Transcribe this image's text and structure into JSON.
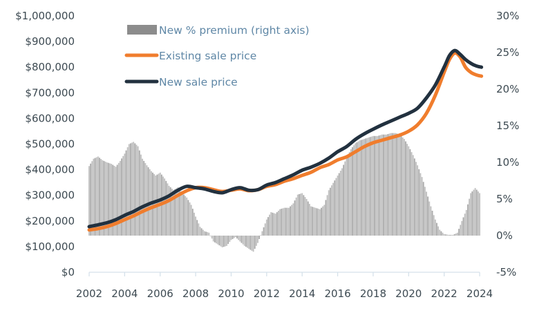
{
  "chart_data": {
    "type": "bar+line",
    "title": "",
    "xlabel": "",
    "ylabel_left": "",
    "ylabel_right": "",
    "x_range": [
      2002,
      2024.1
    ],
    "x_ticks": [
      "2002",
      "2004",
      "2006",
      "2008",
      "2010",
      "2012",
      "2014",
      "2016",
      "2018",
      "2020",
      "2022",
      "2024"
    ],
    "y_left": {
      "range": [
        0,
        1000000
      ],
      "ticks": [
        "$0",
        "$100,000",
        "$200,000",
        "$300,000",
        "$400,000",
        "$500,000",
        "$600,000",
        "$700,000",
        "$800,000",
        "$900,000",
        "$1,000,000"
      ]
    },
    "y_right": {
      "range": [
        -5,
        30
      ],
      "ticks": [
        "-5%",
        "0%",
        "5%",
        "10%",
        "15%",
        "20%",
        "25%",
        "30%"
      ]
    },
    "grid": false,
    "legend": {
      "placement": "top-left",
      "items": [
        {
          "label": "New % premium (right axis)",
          "kind": "bar",
          "color": "#8c8c8c"
        },
        {
          "label": "Existing sale price",
          "kind": "line",
          "color": "#f07d2d"
        },
        {
          "label": "New sale price",
          "kind": "line",
          "color": "#22313f"
        }
      ]
    },
    "series": [
      {
        "name": "New % premium (right axis)",
        "type": "bar",
        "axis": "right",
        "color": "#b4b4b4",
        "x": [
          2002.0,
          2002.25,
          2002.5,
          2002.75,
          2003.0,
          2003.25,
          2003.5,
          2003.75,
          2004.0,
          2004.25,
          2004.5,
          2004.75,
          2005.0,
          2005.25,
          2005.5,
          2005.75,
          2006.0,
          2006.25,
          2006.5,
          2006.75,
          2007.0,
          2007.25,
          2007.5,
          2007.75,
          2008.0,
          2008.25,
          2008.5,
          2008.75,
          2009.0,
          2009.25,
          2009.5,
          2009.75,
          2010.0,
          2010.25,
          2010.5,
          2010.75,
          2011.0,
          2011.25,
          2011.5,
          2011.75,
          2012.0,
          2012.25,
          2012.5,
          2012.75,
          2013.0,
          2013.25,
          2013.5,
          2013.75,
          2014.0,
          2014.25,
          2014.5,
          2014.75,
          2015.0,
          2015.25,
          2015.5,
          2015.75,
          2016.0,
          2016.25,
          2016.5,
          2016.75,
          2017.0,
          2017.25,
          2017.5,
          2017.75,
          2018.0,
          2018.25,
          2018.5,
          2018.75,
          2019.0,
          2019.25,
          2019.5,
          2019.75,
          2020.0,
          2020.25,
          2020.5,
          2020.75,
          2021.0,
          2021.25,
          2021.5,
          2021.75,
          2022.0,
          2022.25,
          2022.5,
          2022.75,
          2023.0,
          2023.25,
          2023.5,
          2023.75,
          2024.0
        ],
        "values": [
          9.5,
          10.5,
          10.8,
          10.3,
          10.0,
          9.8,
          9.4,
          10.2,
          11.2,
          12.5,
          12.8,
          12.2,
          10.5,
          9.6,
          8.8,
          8.2,
          8.6,
          7.8,
          6.8,
          6.2,
          6.6,
          5.8,
          5.2,
          4.2,
          2.6,
          1.2,
          0.6,
          0.4,
          -0.8,
          -1.2,
          -1.6,
          -1.4,
          -0.6,
          -0.2,
          -0.8,
          -1.4,
          -1.8,
          -2.2,
          -1.0,
          0.6,
          2.2,
          3.2,
          3.0,
          3.6,
          3.8,
          3.8,
          4.4,
          5.6,
          5.8,
          5.0,
          4.0,
          3.8,
          3.6,
          4.2,
          6.2,
          7.2,
          8.2,
          9.2,
          10.6,
          11.8,
          12.6,
          13.0,
          13.2,
          13.4,
          13.6,
          13.6,
          13.8,
          13.8,
          14.0,
          14.0,
          13.8,
          13.2,
          12.2,
          11.0,
          9.6,
          8.0,
          6.0,
          4.0,
          2.2,
          0.8,
          0.2,
          0.1,
          0.1,
          0.4,
          2.0,
          3.5,
          5.8,
          6.5,
          5.8
        ],
        "note": "values in percent, estimated from quarterly-spaced bars"
      },
      {
        "name": "Existing sale price",
        "type": "line",
        "axis": "left",
        "color": "#f07d2d",
        "x": [
          2002.0,
          2002.5,
          2003.0,
          2003.5,
          2004.0,
          2004.5,
          2005.0,
          2005.5,
          2006.0,
          2006.5,
          2007.0,
          2007.5,
          2008.0,
          2008.5,
          2009.0,
          2009.5,
          2010.0,
          2010.5,
          2011.0,
          2011.5,
          2012.0,
          2012.5,
          2013.0,
          2013.5,
          2014.0,
          2014.5,
          2015.0,
          2015.5,
          2016.0,
          2016.5,
          2017.0,
          2017.5,
          2018.0,
          2018.5,
          2019.0,
          2019.5,
          2020.0,
          2020.5,
          2021.0,
          2021.5,
          2022.0,
          2022.3,
          2022.6,
          2022.9,
          2023.2,
          2023.5,
          2023.8,
          2024.1
        ],
        "values": [
          165000,
          170000,
          178000,
          190000,
          205000,
          220000,
          237000,
          252000,
          265000,
          280000,
          300000,
          318000,
          330000,
          330000,
          322000,
          315000,
          320000,
          325000,
          318000,
          322000,
          335000,
          342000,
          355000,
          365000,
          378000,
          390000,
          408000,
          420000,
          438000,
          450000,
          470000,
          490000,
          505000,
          515000,
          525000,
          535000,
          550000,
          575000,
          620000,
          690000,
          780000,
          830000,
          855000,
          840000,
          800000,
          780000,
          770000,
          765000
        ]
      },
      {
        "name": "New sale price",
        "type": "line",
        "axis": "left",
        "color": "#22313f",
        "x": [
          2002.0,
          2002.5,
          2003.0,
          2003.5,
          2004.0,
          2004.5,
          2005.0,
          2005.5,
          2006.0,
          2006.5,
          2007.0,
          2007.5,
          2008.0,
          2008.5,
          2009.0,
          2009.5,
          2010.0,
          2010.5,
          2011.0,
          2011.5,
          2012.0,
          2012.5,
          2013.0,
          2013.5,
          2014.0,
          2014.5,
          2015.0,
          2015.5,
          2016.0,
          2016.5,
          2017.0,
          2017.5,
          2018.0,
          2018.5,
          2019.0,
          2019.5,
          2020.0,
          2020.5,
          2021.0,
          2021.5,
          2022.0,
          2022.3,
          2022.6,
          2022.9,
          2023.2,
          2023.5,
          2023.8,
          2024.1
        ],
        "values": [
          178000,
          185000,
          193000,
          205000,
          222000,
          237000,
          255000,
          270000,
          282000,
          298000,
          320000,
          335000,
          330000,
          325000,
          315000,
          310000,
          322000,
          330000,
          320000,
          322000,
          340000,
          350000,
          365000,
          380000,
          398000,
          410000,
          425000,
          445000,
          470000,
          490000,
          518000,
          540000,
          558000,
          575000,
          590000,
          605000,
          620000,
          640000,
          680000,
          730000,
          800000,
          845000,
          865000,
          850000,
          830000,
          815000,
          805000,
          800000
        ]
      }
    ]
  }
}
